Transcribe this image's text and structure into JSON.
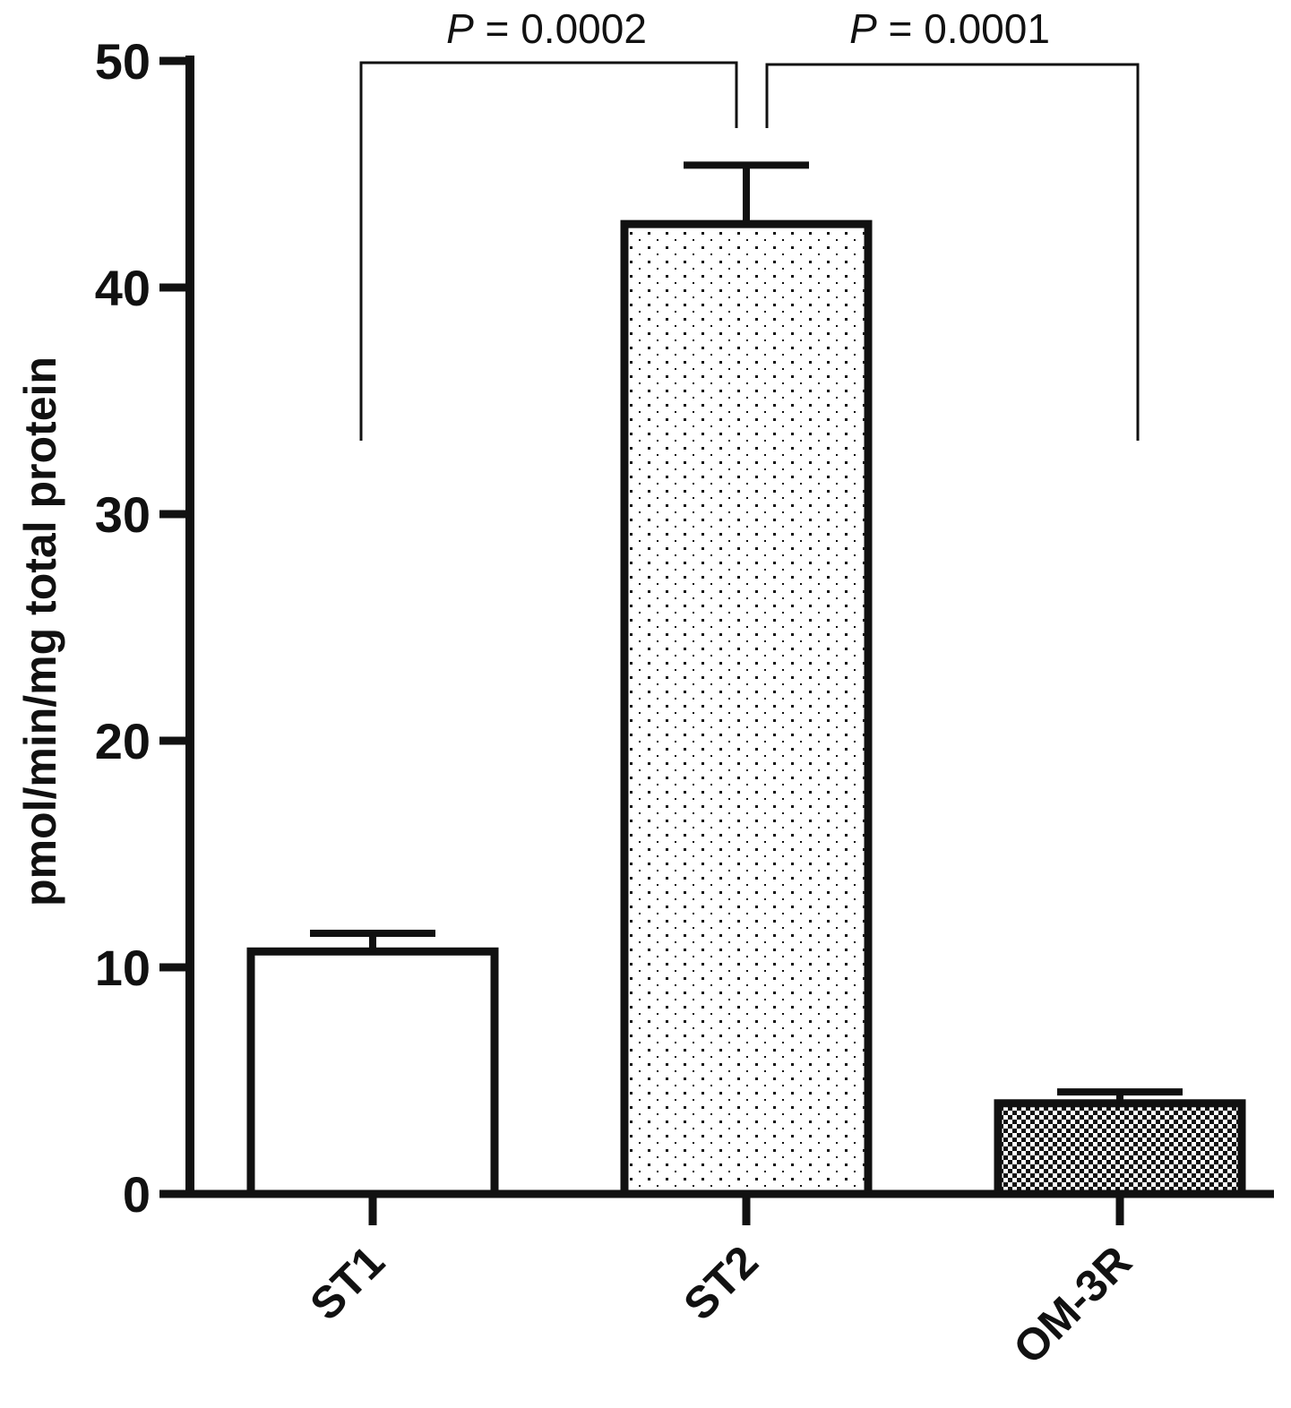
{
  "chart_data": {
    "type": "bar",
    "categories": [
      "ST1",
      "ST2",
      "OM-3R"
    ],
    "values": [
      10.7,
      42.8,
      4.0
    ],
    "errors": [
      0.8,
      2.6,
      0.5
    ],
    "patterns": [
      "none",
      "dots",
      "checker"
    ],
    "ylabel": "pmol/min/mg total protein",
    "xlabel": "",
    "ylim": [
      0,
      50
    ],
    "yticks": [
      "0",
      "10",
      "20",
      "30",
      "40",
      "50"
    ],
    "grid": false,
    "annotations": [
      {
        "from": "ST1",
        "to": "ST2",
        "p_symbol": "P",
        "p_value": " = 0.0002"
      },
      {
        "from": "ST2",
        "to": "OM-3R",
        "p_symbol": "P",
        "p_value": " = 0.0001"
      }
    ],
    "colors": {
      "axis": "#111111",
      "bar_fill": "#ffffff",
      "pattern": "#111111"
    }
  }
}
